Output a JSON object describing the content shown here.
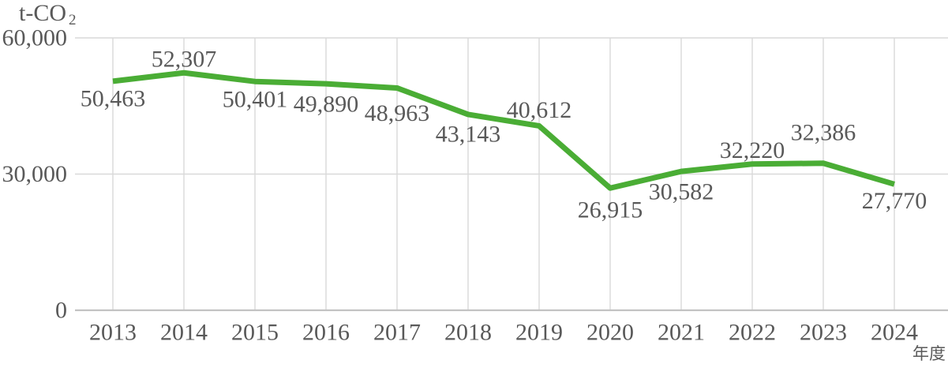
{
  "unit_label": {
    "main": "t-CO",
    "sub": "2"
  },
  "x_axis_title": "年度",
  "chart_data": {
    "type": "line",
    "title": "",
    "ylabel_unit": "t-CO2",
    "xlabel": "年度",
    "categories": [
      "2013",
      "2014",
      "2015",
      "2016",
      "2017",
      "2018",
      "2019",
      "2020",
      "2021",
      "2022",
      "2023",
      "2024"
    ],
    "values": [
      50463,
      52307,
      50401,
      49890,
      48963,
      43143,
      40612,
      26915,
      30582,
      32220,
      32386,
      27770
    ],
    "value_labels": [
      "50,463",
      "52,307",
      "50,401",
      "49,890",
      "48,963",
      "43,143",
      "40,612",
      "26,915",
      "30,582",
      "32,220",
      "32,386",
      "27,770"
    ],
    "ylim": [
      0,
      60000
    ],
    "yticks": [
      {
        "v": 0,
        "label": "0"
      },
      {
        "v": 30000,
        "label": "30,000"
      },
      {
        "v": 60000,
        "label": "60,000"
      }
    ],
    "grid": true,
    "legend": false,
    "colors": {
      "line": "#4aad35",
      "grid": "#d9d9d9",
      "zero_axis": "#c2c2c2",
      "text": "#595959"
    },
    "label_dy": [
      22,
      -17,
      23,
      26,
      32,
      25,
      -20,
      28,
      26,
      -17,
      -39,
      21
    ]
  }
}
